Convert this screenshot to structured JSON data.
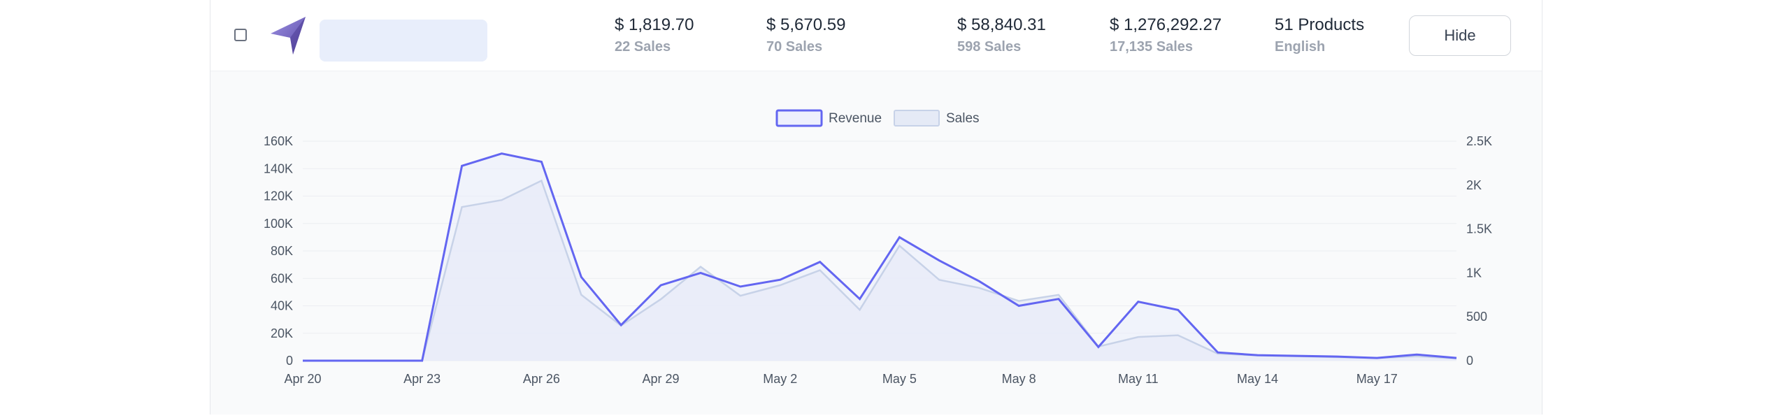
{
  "row": {
    "stats": [
      {
        "amount": "$ 1,819.70",
        "sub": "22 Sales"
      },
      {
        "amount": "$ 5,670.59",
        "sub": "70 Sales"
      },
      {
        "amount": "$ 58,840.31",
        "sub": "598 Sales"
      },
      {
        "amount": "$ 1,276,292.27",
        "sub": "17,135 Sales"
      },
      {
        "amount": "51 Products",
        "sub": "English"
      }
    ],
    "hide_label": "Hide"
  },
  "colors": {
    "revenue": "#6366f1",
    "sales_fill": "#e5eaf6",
    "sales_line": "#c7d2e8",
    "logo": "#7c6fd0"
  },
  "chart_data": {
    "type": "area",
    "x": [
      "Apr 20",
      "Apr 21",
      "Apr 22",
      "Apr 23",
      "Apr 24",
      "Apr 25",
      "Apr 26",
      "Apr 27",
      "Apr 28",
      "Apr 29",
      "Apr 30",
      "May 1",
      "May 2",
      "May 3",
      "May 4",
      "May 5",
      "May 6",
      "May 7",
      "May 8",
      "May 9",
      "May 10",
      "May 11",
      "May 12",
      "May 13",
      "May 14",
      "May 15",
      "May 16",
      "May 17",
      "May 18",
      "May 19"
    ],
    "x_ticks": [
      "Apr 20",
      "Apr 23",
      "Apr 26",
      "Apr 29",
      "May 2",
      "May 5",
      "May 8",
      "May 11",
      "May 14",
      "May 17"
    ],
    "series": [
      {
        "name": "Revenue",
        "axis": "left",
        "values": [
          0,
          0,
          0,
          0,
          142000,
          151000,
          145000,
          61000,
          26000,
          55000,
          64000,
          54000,
          59000,
          72000,
          45000,
          90000,
          73000,
          58000,
          40000,
          45000,
          10000,
          43000,
          37000,
          6000,
          4000,
          3500,
          3000,
          2000,
          4500,
          2000
        ]
      },
      {
        "name": "Sales",
        "axis": "right",
        "values": [
          0,
          0,
          0,
          0,
          1750,
          1830,
          2050,
          750,
          400,
          700,
          1070,
          740,
          860,
          1030,
          580,
          1310,
          920,
          830,
          680,
          750,
          160,
          270,
          290,
          80,
          60,
          50,
          40,
          30,
          50,
          25
        ]
      }
    ],
    "y_left": {
      "ticks": [
        "0",
        "20K",
        "40K",
        "60K",
        "80K",
        "100K",
        "120K",
        "140K",
        "160K"
      ],
      "range": [
        0,
        160000
      ]
    },
    "y_right": {
      "ticks": [
        "0",
        "500",
        "1K",
        "1.5K",
        "2K",
        "2.5K"
      ],
      "range": [
        0,
        2500
      ]
    },
    "legend": "top-center",
    "grid": true
  }
}
